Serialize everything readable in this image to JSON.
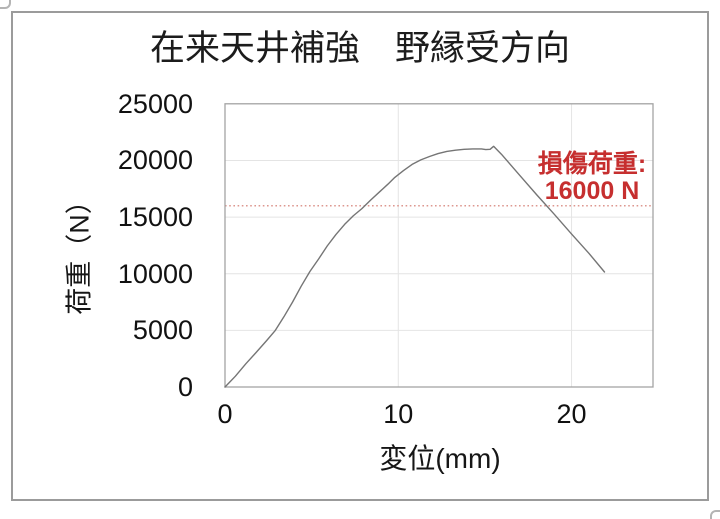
{
  "figure": {
    "background": "#ffffff",
    "border_color": "#9b9b9b"
  },
  "chart_data": {
    "type": "line",
    "title": "在来天井補強　野縁受方向",
    "xlabel": "変位(mm)",
    "ylabel": "荷重（N）",
    "xlim": [
      0,
      24.7
    ],
    "ylim": [
      0,
      25000
    ],
    "x_ticks": [
      0,
      10,
      20
    ],
    "y_ticks": [
      0,
      5000,
      10000,
      15000,
      20000,
      25000
    ],
    "grid": true,
    "legend": "none",
    "colors": {
      "curve": "#757575",
      "grid": "#e4e4e4",
      "frame": "#a3a3a3",
      "reference_line": "#dd978f",
      "annotation_red": "#c62f2f",
      "text": "#111111"
    },
    "reference_line": {
      "value": 16000,
      "style": "dotted"
    },
    "annotation": {
      "line1": "損傷荷重:",
      "line2": "16000 N",
      "value_n": 16000
    },
    "series": [
      {
        "name": "load-displacement-curve",
        "points": [
          [
            0,
            0
          ],
          [
            0.6,
            950
          ],
          [
            1.2,
            2050
          ],
          [
            1.8,
            3050
          ],
          [
            2.4,
            4100
          ],
          [
            2.9,
            5000
          ],
          [
            3.4,
            6200
          ],
          [
            3.9,
            7500
          ],
          [
            4.4,
            8900
          ],
          [
            4.9,
            10200
          ],
          [
            5.4,
            11300
          ],
          [
            5.9,
            12450
          ],
          [
            6.4,
            13450
          ],
          [
            6.9,
            14350
          ],
          [
            7.4,
            15100
          ],
          [
            7.9,
            15750
          ],
          [
            8.4,
            16500
          ],
          [
            8.9,
            17200
          ],
          [
            9.4,
            17900
          ],
          [
            9.8,
            18500
          ],
          [
            10.3,
            19100
          ],
          [
            10.8,
            19650
          ],
          [
            11.3,
            20050
          ],
          [
            11.8,
            20350
          ],
          [
            12.3,
            20600
          ],
          [
            12.8,
            20800
          ],
          [
            13.3,
            20900
          ],
          [
            13.8,
            20980
          ],
          [
            14.3,
            21020
          ],
          [
            14.8,
            21020
          ],
          [
            15.05,
            20960
          ],
          [
            15.3,
            20980
          ],
          [
            15.5,
            21250
          ],
          [
            15.95,
            20550
          ],
          [
            17,
            18700
          ],
          [
            18,
            16950
          ],
          [
            19,
            15250
          ],
          [
            20,
            13500
          ],
          [
            21,
            11800
          ],
          [
            21.9,
            10150
          ]
        ]
      }
    ]
  }
}
